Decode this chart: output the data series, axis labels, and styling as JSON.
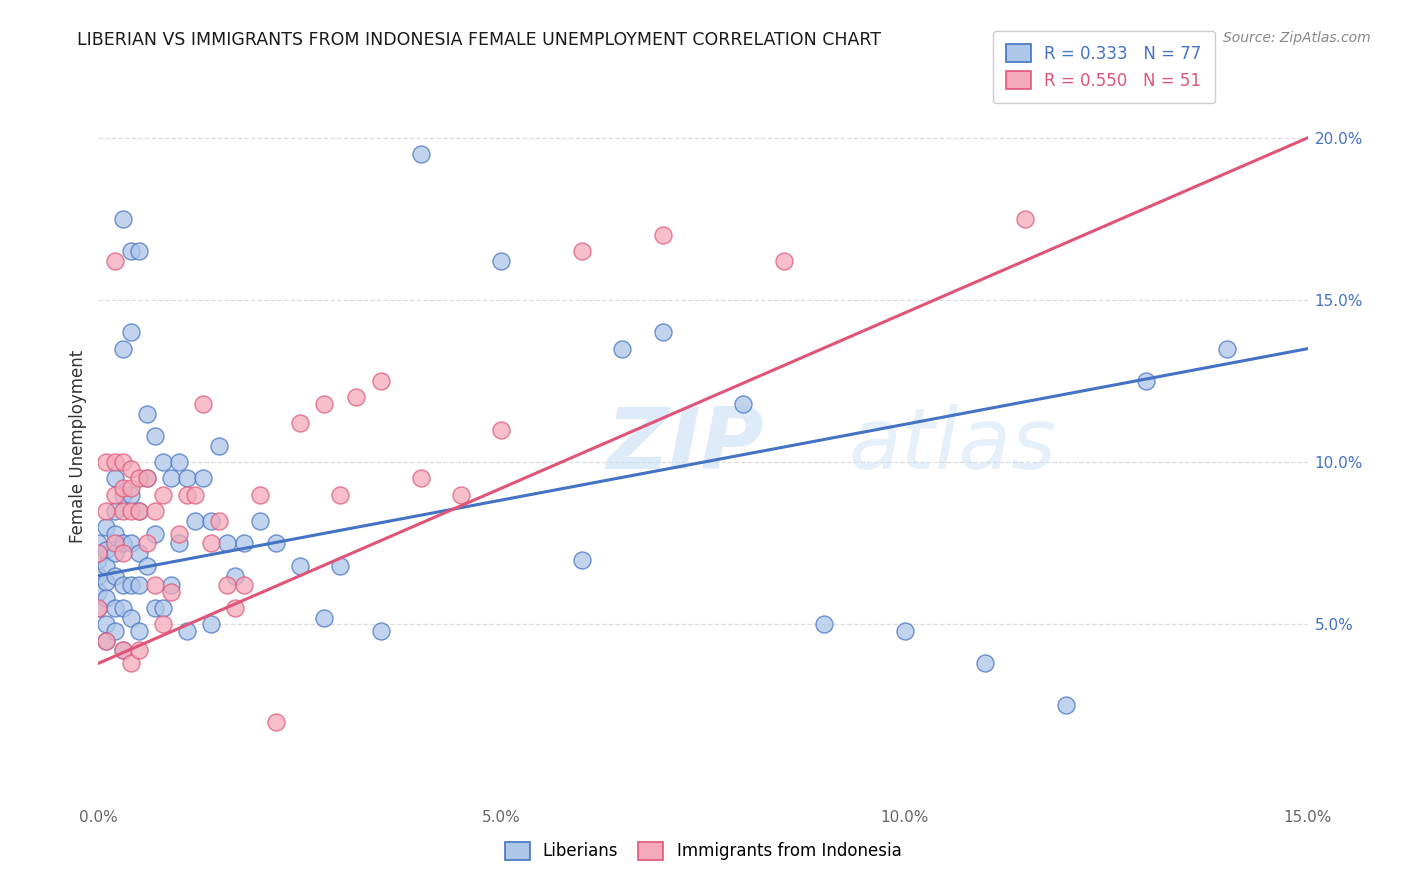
{
  "title": "LIBERIAN VS IMMIGRANTS FROM INDONESIA FEMALE UNEMPLOYMENT CORRELATION CHART",
  "source_text": "Source: ZipAtlas.com",
  "ylabel": "Female Unemployment",
  "xlim": [
    0.0,
    0.15
  ],
  "ylim": [
    -0.005,
    0.215
  ],
  "xtick_vals": [
    0.0,
    0.05,
    0.1,
    0.15
  ],
  "xtick_labels": [
    "0.0%",
    "5.0%",
    "10.0%",
    "15.0%"
  ],
  "ytick_right_vals": [
    0.05,
    0.1,
    0.15,
    0.2
  ],
  "ytick_right_labels": [
    "5.0%",
    "10.0%",
    "15.0%",
    "20.0%"
  ],
  "liberian_color": "#aec6e8",
  "indonesia_color": "#f4aaba",
  "trendline_blue": "#4472c4",
  "trendline_pink": "#e05577",
  "R_liberian": 0.333,
  "N_liberian": 77,
  "R_indonesia": 0.55,
  "N_indonesia": 51,
  "watermark": "ZIPatlas",
  "liberian_trendline": [
    0.0,
    0.065,
    0.15,
    0.135
  ],
  "indonesia_trendline": [
    0.0,
    0.038,
    0.15,
    0.2
  ],
  "liberian_x": [
    0.0,
    0.0,
    0.0,
    0.0,
    0.0,
    0.001,
    0.001,
    0.001,
    0.001,
    0.001,
    0.001,
    0.001,
    0.002,
    0.002,
    0.002,
    0.002,
    0.002,
    0.002,
    0.002,
    0.003,
    0.003,
    0.003,
    0.003,
    0.003,
    0.003,
    0.003,
    0.004,
    0.004,
    0.004,
    0.004,
    0.004,
    0.004,
    0.005,
    0.005,
    0.005,
    0.005,
    0.005,
    0.006,
    0.006,
    0.006,
    0.007,
    0.007,
    0.007,
    0.008,
    0.008,
    0.009,
    0.009,
    0.01,
    0.01,
    0.011,
    0.011,
    0.012,
    0.013,
    0.014,
    0.014,
    0.015,
    0.016,
    0.017,
    0.018,
    0.02,
    0.022,
    0.025,
    0.028,
    0.03,
    0.035,
    0.04,
    0.05,
    0.06,
    0.065,
    0.07,
    0.08,
    0.09,
    0.1,
    0.11,
    0.12,
    0.13,
    0.14
  ],
  "liberian_y": [
    0.075,
    0.07,
    0.065,
    0.06,
    0.055,
    0.08,
    0.073,
    0.068,
    0.063,
    0.058,
    0.05,
    0.045,
    0.095,
    0.085,
    0.078,
    0.072,
    0.065,
    0.055,
    0.048,
    0.175,
    0.135,
    0.09,
    0.075,
    0.062,
    0.055,
    0.042,
    0.165,
    0.14,
    0.09,
    0.075,
    0.062,
    0.052,
    0.165,
    0.085,
    0.072,
    0.062,
    0.048,
    0.115,
    0.095,
    0.068,
    0.108,
    0.078,
    0.055,
    0.1,
    0.055,
    0.095,
    0.062,
    0.1,
    0.075,
    0.095,
    0.048,
    0.082,
    0.095,
    0.082,
    0.05,
    0.105,
    0.075,
    0.065,
    0.075,
    0.082,
    0.075,
    0.068,
    0.052,
    0.068,
    0.048,
    0.195,
    0.162,
    0.07,
    0.135,
    0.14,
    0.118,
    0.05,
    0.048,
    0.038,
    0.025,
    0.125,
    0.135
  ],
  "indonesia_x": [
    0.0,
    0.0,
    0.001,
    0.001,
    0.001,
    0.002,
    0.002,
    0.002,
    0.002,
    0.003,
    0.003,
    0.003,
    0.003,
    0.003,
    0.004,
    0.004,
    0.004,
    0.004,
    0.005,
    0.005,
    0.005,
    0.006,
    0.006,
    0.007,
    0.007,
    0.008,
    0.008,
    0.009,
    0.01,
    0.011,
    0.012,
    0.013,
    0.014,
    0.015,
    0.016,
    0.017,
    0.018,
    0.02,
    0.022,
    0.025,
    0.028,
    0.03,
    0.032,
    0.035,
    0.04,
    0.045,
    0.05,
    0.06,
    0.07,
    0.085,
    0.115
  ],
  "indonesia_y": [
    0.072,
    0.055,
    0.1,
    0.085,
    0.045,
    0.162,
    0.1,
    0.09,
    0.075,
    0.1,
    0.092,
    0.085,
    0.072,
    0.042,
    0.098,
    0.092,
    0.085,
    0.038,
    0.095,
    0.085,
    0.042,
    0.095,
    0.075,
    0.085,
    0.062,
    0.09,
    0.05,
    0.06,
    0.078,
    0.09,
    0.09,
    0.118,
    0.075,
    0.082,
    0.062,
    0.055,
    0.062,
    0.09,
    0.02,
    0.112,
    0.118,
    0.09,
    0.12,
    0.125,
    0.095,
    0.09,
    0.11,
    0.165,
    0.17,
    0.162,
    0.175
  ]
}
